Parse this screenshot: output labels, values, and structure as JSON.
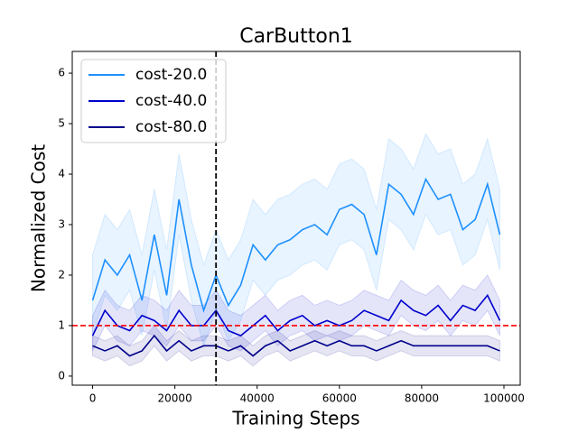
{
  "chart_data": {
    "type": "line",
    "title": "CarButton1",
    "xlabel": "Training Steps",
    "ylabel": "Normalized Cost",
    "x": [
      0,
      3000,
      6000,
      9000,
      12000,
      15000,
      18000,
      21000,
      24000,
      27000,
      30000,
      33000,
      36000,
      39000,
      42000,
      45000,
      48000,
      51000,
      54000,
      57000,
      60000,
      63000,
      66000,
      69000,
      72000,
      75000,
      78000,
      81000,
      84000,
      87000,
      90000,
      93000,
      96000,
      99000
    ],
    "series": [
      {
        "name": "cost-20.0",
        "color": "#1e90ff",
        "values": [
          1.5,
          2.3,
          2.0,
          2.4,
          1.5,
          2.8,
          1.6,
          3.5,
          2.2,
          1.3,
          2.0,
          1.4,
          1.8,
          2.6,
          2.3,
          2.6,
          2.7,
          2.9,
          3.0,
          2.8,
          3.3,
          3.4,
          3.2,
          2.4,
          3.8,
          3.6,
          3.2,
          3.9,
          3.5,
          3.6,
          2.9,
          3.1,
          3.8,
          2.8
        ],
        "band_lower": [
          0.8,
          1.6,
          1.3,
          1.7,
          0.8,
          2.1,
          0.9,
          2.8,
          1.5,
          0.6,
          1.3,
          0.7,
          1.1,
          1.9,
          1.6,
          1.9,
          2.0,
          2.2,
          2.3,
          2.1,
          2.6,
          2.7,
          2.5,
          1.7,
          3.1,
          2.9,
          2.5,
          3.2,
          2.8,
          2.9,
          2.2,
          2.4,
          3.1,
          2.1
        ],
        "band_upper": [
          2.4,
          3.2,
          2.9,
          3.3,
          2.4,
          3.7,
          2.5,
          4.4,
          3.1,
          2.2,
          2.9,
          2.3,
          2.7,
          3.5,
          3.2,
          3.5,
          3.6,
          3.8,
          3.9,
          3.7,
          4.2,
          4.3,
          4.1,
          3.3,
          4.7,
          4.5,
          4.1,
          4.8,
          4.4,
          4.5,
          3.8,
          4.0,
          4.7,
          3.7
        ]
      },
      {
        "name": "cost-40.0",
        "color": "#0000cd",
        "values": [
          0.8,
          1.3,
          1.0,
          0.9,
          1.2,
          1.1,
          0.9,
          1.3,
          1.0,
          1.0,
          1.3,
          0.9,
          0.8,
          1.0,
          1.2,
          0.9,
          1.1,
          1.2,
          1.0,
          1.1,
          1.0,
          1.1,
          1.3,
          1.2,
          1.1,
          1.5,
          1.3,
          1.2,
          1.4,
          1.1,
          1.4,
          1.3,
          1.6,
          1.1
        ],
        "band_lower": [
          0.5,
          1.0,
          0.7,
          0.6,
          0.9,
          0.8,
          0.6,
          1.0,
          0.7,
          0.7,
          1.0,
          0.6,
          0.5,
          0.7,
          0.9,
          0.6,
          0.8,
          0.9,
          0.7,
          0.8,
          0.7,
          0.8,
          1.0,
          0.9,
          0.8,
          1.2,
          1.0,
          0.9,
          1.1,
          0.8,
          1.1,
          1.0,
          1.3,
          0.8
        ],
        "band_upper": [
          1.2,
          1.7,
          1.4,
          1.3,
          1.6,
          1.5,
          1.3,
          1.7,
          1.4,
          1.4,
          1.7,
          1.3,
          1.2,
          1.4,
          1.6,
          1.3,
          1.5,
          1.6,
          1.4,
          1.5,
          1.4,
          1.5,
          1.7,
          1.6,
          1.5,
          1.9,
          1.7,
          1.6,
          1.8,
          1.5,
          1.8,
          1.7,
          2.0,
          1.5
        ]
      },
      {
        "name": "cost-80.0",
        "color": "#00008b",
        "values": [
          0.6,
          0.5,
          0.6,
          0.4,
          0.5,
          0.8,
          0.5,
          0.7,
          0.5,
          0.6,
          0.6,
          0.5,
          0.6,
          0.4,
          0.6,
          0.7,
          0.5,
          0.6,
          0.7,
          0.6,
          0.7,
          0.6,
          0.6,
          0.5,
          0.6,
          0.7,
          0.6,
          0.6,
          0.6,
          0.6,
          0.6,
          0.6,
          0.6,
          0.5
        ],
        "band_lower": [
          0.4,
          0.3,
          0.4,
          0.2,
          0.3,
          0.6,
          0.3,
          0.5,
          0.3,
          0.4,
          0.4,
          0.3,
          0.4,
          0.2,
          0.4,
          0.5,
          0.3,
          0.4,
          0.5,
          0.4,
          0.5,
          0.4,
          0.4,
          0.3,
          0.4,
          0.5,
          0.4,
          0.4,
          0.4,
          0.4,
          0.4,
          0.4,
          0.4,
          0.3
        ],
        "band_upper": [
          0.8,
          0.7,
          0.8,
          0.6,
          0.7,
          1.0,
          0.7,
          0.9,
          0.7,
          0.8,
          0.8,
          0.7,
          0.8,
          0.6,
          0.8,
          0.9,
          0.7,
          0.8,
          0.9,
          0.8,
          0.9,
          0.8,
          0.8,
          0.7,
          0.8,
          0.9,
          0.8,
          0.8,
          0.8,
          0.8,
          0.8,
          0.8,
          0.8,
          0.7
        ]
      }
    ],
    "hline": {
      "value": 1,
      "color": "#ff0000"
    },
    "vline": {
      "value": 30000,
      "color": "#000000"
    },
    "xlim": [
      -4950,
      103950
    ],
    "xticks": [
      0,
      20000,
      40000,
      60000,
      80000,
      100000
    ],
    "ylim": [
      -0.18,
      6.43
    ],
    "yticks": [
      0,
      1,
      2,
      3,
      4,
      5,
      6
    ],
    "legend": "upper left"
  }
}
